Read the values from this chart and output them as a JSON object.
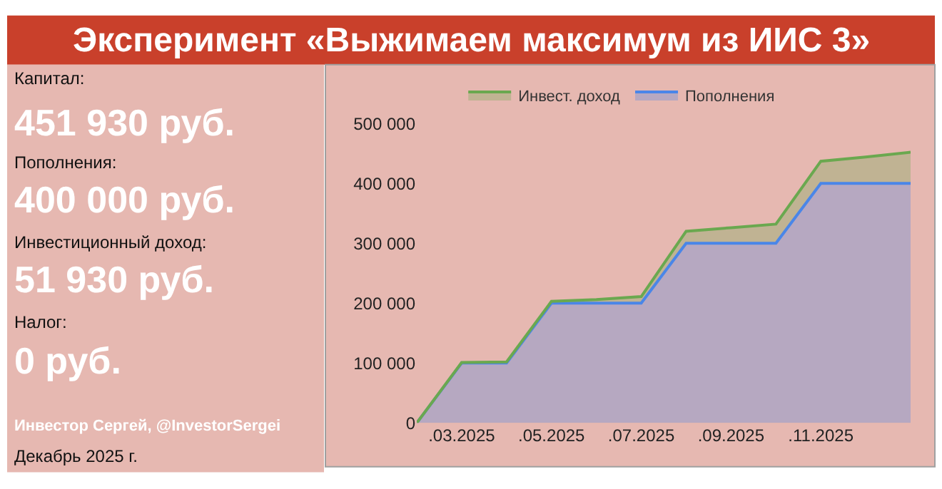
{
  "chart_data": [
    {
      "type": "other",
      "title": "Эксперимент «Выжимаем максимум из ИИС 3»",
      "annotations": [
        "Капитал:",
        "451 930 руб.",
        "Пополнения:",
        "400 000 руб.",
        "Инвестиционный доход:",
        "51 930 руб.",
        "Налог:",
        "0 руб.",
        "Инвестор Сергей, @InvestorSergei",
        "Декабрь 2025 г."
      ]
    },
    {
      "type": "area",
      "stacked": true,
      "legend": "top",
      "grid": false,
      "categories": [
        null,
        ".03.2025",
        null,
        ".05.2025",
        null,
        ".07.2025",
        null,
        ".09.2025",
        null,
        ".11.2025",
        null,
        null
      ],
      "series": [
        {
          "name": "Пополнения",
          "color": "#4a86e8",
          "values": [
            0,
            100000,
            100000,
            200000,
            200000,
            200000,
            300000,
            300000,
            300000,
            400000,
            400000,
            400000
          ]
        },
        {
          "name": "Инвест. доход",
          "color": "#6aa84f",
          "values": [
            0,
            1000,
            2000,
            3000,
            6000,
            11000,
            20000,
            26000,
            32000,
            37000,
            44000,
            52000
          ]
        }
      ],
      "ylim": [
        0,
        500000
      ],
      "yticks": [
        0,
        {
          "value": 100000,
          "label": "100 000"
        },
        {
          "value": 200000,
          "label": "200 000"
        },
        {
          "value": 300000,
          "label": "300 000"
        },
        {
          "value": 400000,
          "label": "400 000"
        },
        {
          "value": 500000,
          "label": "500 000"
        }
      ]
    }
  ]
}
